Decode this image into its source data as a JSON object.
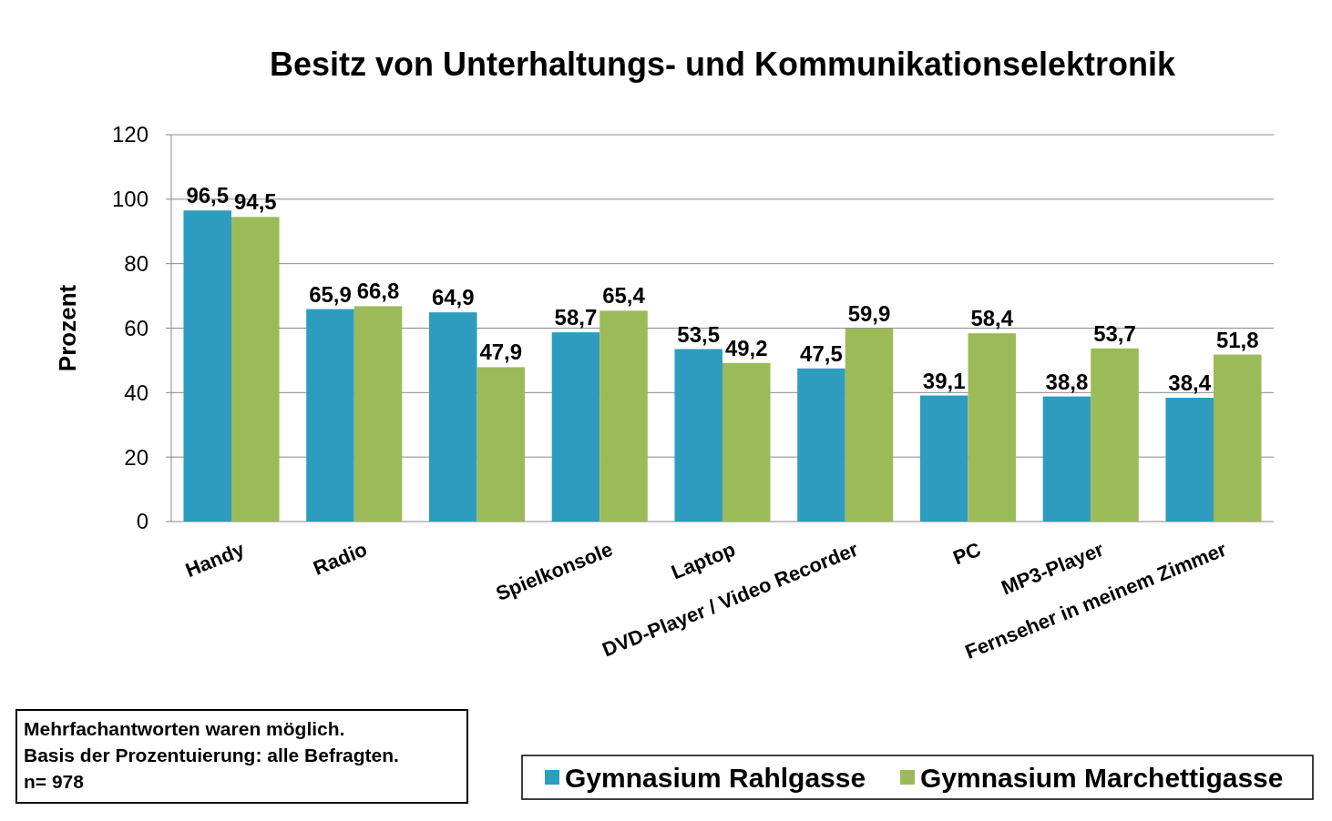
{
  "chart_data": {
    "type": "bar",
    "title": "Besitz von Unterhaltungs- und Kommunikationselektronik",
    "ylabel": "Prozent",
    "categories": [
      "Handy",
      "Radio",
      null,
      "Spielkonsole",
      "Laptop",
      "DVD-Player / Video Recorder",
      "PC",
      "MP3-Player",
      "Fernseher in meinem Zimmer"
    ],
    "series": [
      {
        "name": "Gymnasium Rahlgasse",
        "color": "#2e9cbf",
        "values": [
          96.5,
          65.9,
          64.9,
          58.7,
          53.5,
          47.5,
          39.1,
          38.8,
          38.4
        ],
        "value_labels": [
          "96,5",
          "65,9",
          "64,9",
          "58,7",
          "53,5",
          "47,5",
          "39,1",
          "38,8",
          "38,4"
        ]
      },
      {
        "name": "Gymnasium Marchettigasse",
        "color": "#9bbb59",
        "values": [
          94.5,
          66.8,
          47.9,
          65.4,
          49.2,
          59.9,
          58.4,
          53.7,
          51.8
        ],
        "value_labels": [
          "94,5",
          "66,8",
          "47,9",
          "65,4",
          "49,2",
          "59,9",
          "58,4",
          "53,7",
          "51,8"
        ]
      }
    ],
    "ylim": [
      0,
      120
    ],
    "yticks": [
      0,
      20,
      40,
      60,
      80,
      100,
      120
    ],
    "grid": "y",
    "legend": "bottom",
    "annotations": [
      "Mehrfachantworten waren möglich.",
      "Basis der Prozentuierung: alle Befragten.",
      "n= 978"
    ]
  }
}
